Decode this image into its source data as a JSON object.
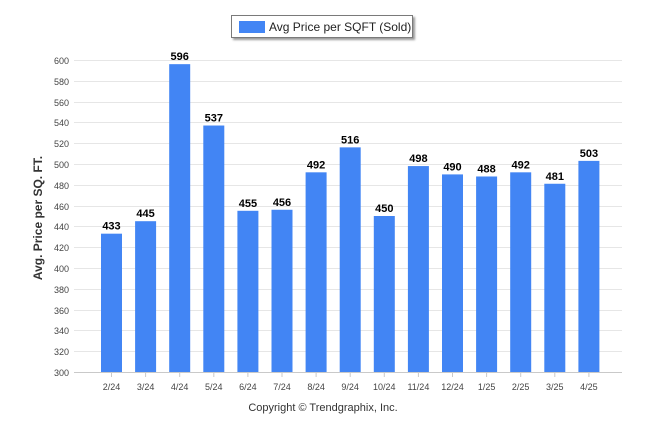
{
  "legend": {
    "label": "Avg Price per SQFT (Sold)"
  },
  "copyright": "Copyright © Trendgraphix, Inc.",
  "chart_data": {
    "type": "bar",
    "title": "",
    "xlabel": "",
    "ylabel": "Avg. Price per SQ. FT.",
    "ylim": [
      300,
      600
    ],
    "yticks": [
      300,
      320,
      340,
      360,
      380,
      400,
      420,
      440,
      460,
      480,
      500,
      520,
      540,
      560,
      580,
      600
    ],
    "grid": true,
    "legend_position": "top-center",
    "bar_color": "#4285f4",
    "categories": [
      "2/24",
      "3/24",
      "4/24",
      "5/24",
      "6/24",
      "7/24",
      "8/24",
      "9/24",
      "10/24",
      "11/24",
      "12/24",
      "1/25",
      "2/25",
      "3/25",
      "4/25"
    ],
    "series": [
      {
        "name": "Avg Price per SQFT (Sold)",
        "values": [
          433,
          445,
          596,
          537,
          455,
          456,
          492,
          516,
          450,
          498,
          490,
          488,
          492,
          481,
          503
        ]
      }
    ]
  }
}
